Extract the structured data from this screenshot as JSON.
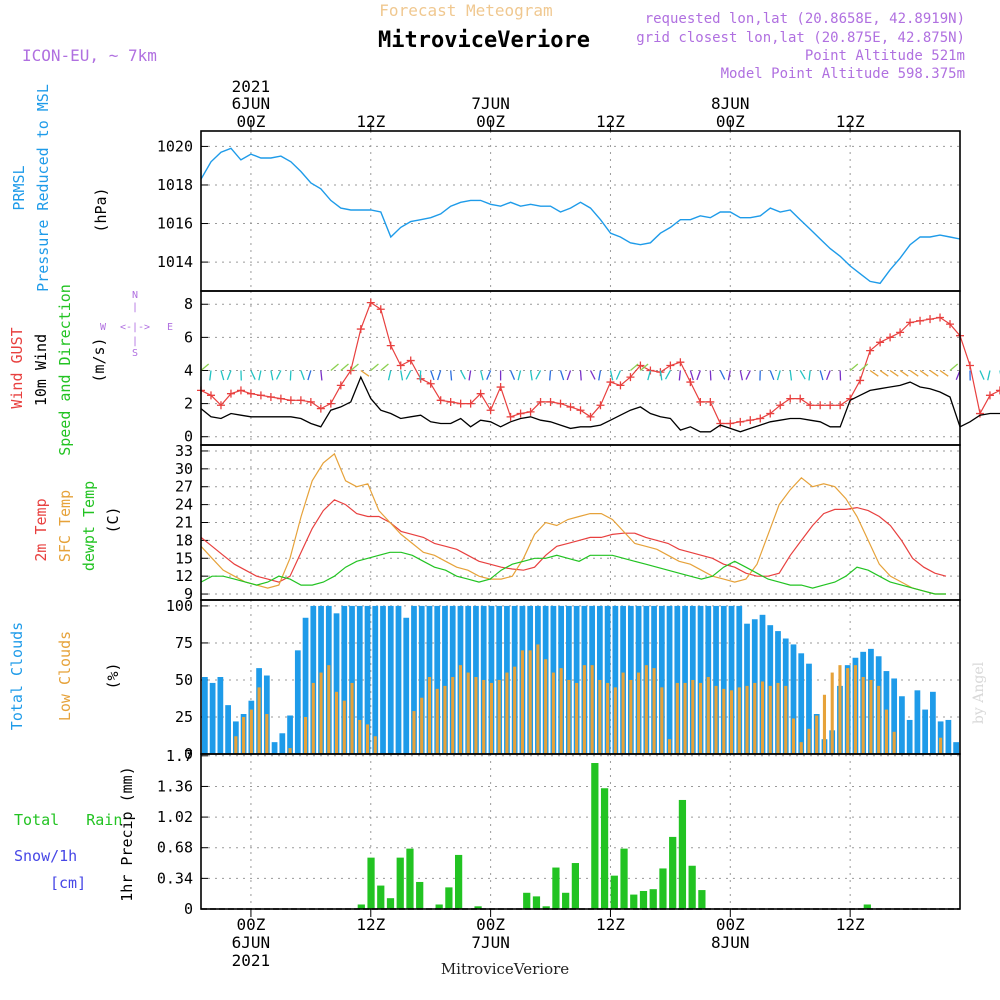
{
  "header": {
    "subtitle": "Forecast Meteogram",
    "location": "MitroviceVeriore",
    "model": "ICON-EU, ~ 7km",
    "requested": "requested lon,lat (20.8658E, 42.8919N)",
    "closest": "grid closest lon,lat (20.875E, 42.875N)",
    "point_alt": "Point Altitude 521m",
    "model_alt": "Model Point Altitude 598.375m",
    "footer": "MitroviceVeriore",
    "watermark": "by Angel"
  },
  "colors": {
    "blue": "#1e9be9",
    "red": "#e8403f",
    "orange": "#e6a23a",
    "green": "#22c322",
    "purple": "#a050d8",
    "grid": "#9a9a9a",
    "snow": "#4646e6"
  },
  "time_axis": {
    "top_ticks": [
      {
        "label": "00Z",
        "date": "6JUN",
        "year": "2021"
      },
      {
        "label": "12Z"
      },
      {
        "label": "00Z",
        "date": "7JUN"
      },
      {
        "label": "12Z"
      },
      {
        "label": "00Z",
        "date": "8JUN"
      },
      {
        "label": "12Z"
      }
    ],
    "bottom_ticks": [
      {
        "label": "00Z",
        "date": "6JUN",
        "year": "2021"
      },
      {
        "label": "12Z"
      },
      {
        "label": "00Z",
        "date": "7JUN"
      },
      {
        "label": "12Z"
      },
      {
        "label": "00Z",
        "date": "8JUN"
      },
      {
        "label": "12Z"
      }
    ],
    "start_hour": -5,
    "end_hour": 71
  },
  "compass": {
    "n": "N",
    "s": "S",
    "w": "W",
    "e": "E",
    "ew": "<-|->"
  },
  "chart_data": [
    {
      "type": "line",
      "title": "PRMSL Pressure Reduced to MSL",
      "ylabel": "(hPa)",
      "label_lines": [
        "PRMSL",
        "Pressure Reduced to MSL"
      ],
      "ylim": [
        1012.5,
        1020.8
      ],
      "yticks": [
        1014,
        1016,
        1018,
        1020
      ],
      "x_start": -5,
      "series": [
        {
          "name": "PRMSL",
          "values": [
            1018.3,
            1019.2,
            1019.7,
            1019.9,
            1019.3,
            1019.6,
            1019.4,
            1019.4,
            1019.5,
            1019.2,
            1018.7,
            1018.1,
            1017.8,
            1017.2,
            1016.8,
            1016.7,
            1016.7,
            1016.7,
            1016.6,
            1015.3,
            1015.8,
            1016.1,
            1016.2,
            1016.3,
            1016.5,
            1016.9,
            1017.1,
            1017.2,
            1017.2,
            1017.0,
            1016.9,
            1017.1,
            1016.9,
            1017.0,
            1016.9,
            1016.9,
            1016.6,
            1016.8,
            1017.1,
            1016.8,
            1016.2,
            1015.5,
            1015.3,
            1015.0,
            1014.9,
            1015.0,
            1015.5,
            1015.8,
            1016.2,
            1016.2,
            1016.4,
            1016.3,
            1016.6,
            1016.6,
            1016.3,
            1016.3,
            1016.4,
            1016.8,
            1016.6,
            1016.7,
            1016.2,
            1015.7,
            1015.2,
            1014.7,
            1014.3,
            1013.8,
            1013.4,
            1013.0,
            1012.9,
            1013.6,
            1014.2,
            1014.9,
            1015.3,
            1015.3,
            1015.4,
            1015.3,
            1015.2
          ]
        }
      ]
    },
    {
      "type": "line",
      "title": "Wind GUST / 10m Wind Speed and Direction",
      "ylabel": "(m/s)",
      "label_lines": [
        "Wind GUST",
        "10m Wind",
        "Speed and Direction"
      ],
      "ylim": [
        -0.5,
        8.8
      ],
      "yticks": [
        0,
        2,
        4,
        6,
        8
      ],
      "x_start": -5,
      "series": [
        {
          "name": "Wind GUST",
          "values": [
            2.8,
            2.5,
            1.9,
            2.6,
            2.8,
            2.6,
            2.5,
            2.4,
            2.3,
            2.2,
            2.2,
            2.1,
            1.7,
            2.0,
            3.1,
            4.0,
            6.5,
            8.1,
            7.7,
            5.5,
            4.3,
            4.6,
            3.5,
            3.2,
            2.2,
            2.1,
            2.0,
            2.0,
            2.6,
            1.6,
            3.0,
            1.2,
            1.4,
            1.5,
            2.1,
            2.1,
            2.0,
            1.8,
            1.6,
            1.2,
            1.9,
            3.3,
            3.1,
            3.6,
            4.3,
            4.0,
            3.9,
            4.3,
            4.5,
            3.3,
            2.1,
            2.1,
            0.8,
            0.8,
            0.9,
            1.0,
            1.1,
            1.4,
            1.9,
            2.3,
            2.3,
            1.9,
            1.9,
            1.9,
            1.9,
            2.3,
            3.4,
            5.2,
            5.7,
            6.0,
            6.3,
            6.9,
            7.0,
            7.1,
            7.2,
            6.8,
            6.1,
            4.3,
            1.4,
            2.5,
            2.8,
            2.9,
            3.0,
            3.1
          ]
        },
        {
          "name": "10m Wind",
          "values": [
            1.7,
            1.2,
            1.1,
            1.4,
            1.3,
            1.2,
            1.2,
            1.2,
            1.2,
            1.2,
            1.1,
            0.8,
            0.6,
            1.6,
            1.8,
            2.1,
            3.6,
            2.3,
            1.6,
            1.4,
            1.1,
            1.2,
            1.3,
            0.9,
            0.8,
            0.8,
            1.1,
            0.6,
            1.0,
            0.9,
            0.6,
            0.9,
            1.1,
            1.2,
            1.0,
            0.9,
            0.7,
            0.5,
            0.6,
            0.6,
            0.7,
            1.0,
            1.3,
            1.6,
            1.8,
            1.4,
            1.2,
            1.1,
            0.4,
            0.6,
            0.3,
            0.3,
            0.7,
            0.5,
            0.3,
            0.5,
            0.7,
            0.9,
            1.0,
            1.1,
            1.1,
            1.0,
            0.9,
            0.6,
            0.6,
            2.2,
            2.5,
            2.8,
            2.9,
            3.0,
            3.1,
            3.3,
            3.0,
            2.9,
            2.7,
            2.4,
            0.6,
            0.9,
            1.3,
            1.4,
            1.4,
            1.5
          ]
        }
      ],
      "wind_direction_arrows": "drawn along series at ~4 m/s, colored by speed class"
    },
    {
      "type": "line",
      "title": "Temperature",
      "ylabel": "(C)",
      "label_lines": [
        "2m Temp",
        "SFC Temp",
        "dewpt Temp"
      ],
      "ylim": [
        8,
        34
      ],
      "yticks": [
        9,
        12,
        15,
        18,
        21,
        24,
        27,
        30,
        33
      ],
      "x_start": -5,
      "series": [
        {
          "name": "2m Temp",
          "values": [
            18.5,
            17.0,
            15.5,
            14.0,
            13.0,
            12.0,
            11.5,
            11.0,
            12.0,
            16.0,
            20.0,
            23.0,
            24.8,
            24.0,
            22.5,
            22.0,
            22.0,
            21.0,
            19.5,
            19.0,
            18.5,
            17.5,
            17.0,
            16.5,
            15.5,
            14.5,
            14.0,
            13.5,
            13.2,
            13.0,
            13.5,
            15.5,
            17.0,
            17.5,
            18.0,
            18.5,
            18.5,
            19.0,
            19.2,
            19.2,
            18.5,
            18.0,
            17.5,
            16.5,
            16.0,
            15.5,
            15.0,
            14.0,
            13.5,
            12.5,
            12.0,
            12.0,
            12.5,
            15.5,
            18.0,
            20.5,
            22.5,
            23.2,
            23.2,
            23.5,
            23.0,
            22.0,
            20.5,
            18.0,
            15.0,
            13.5,
            12.5,
            12.0
          ]
        },
        {
          "name": "SFC Temp",
          "values": [
            17.0,
            15.0,
            13.0,
            12.0,
            11.0,
            10.5,
            10.0,
            10.5,
            15.0,
            22.0,
            28.0,
            31.0,
            32.5,
            28.0,
            27.0,
            27.5,
            23.0,
            21.0,
            19.0,
            17.5,
            16.0,
            15.5,
            14.5,
            13.5,
            13.0,
            12.0,
            11.5,
            11.5,
            12.0,
            15.0,
            19.0,
            21.0,
            20.5,
            21.5,
            22.0,
            22.5,
            22.5,
            21.5,
            19.5,
            17.5,
            17.0,
            16.5,
            15.5,
            14.5,
            14.0,
            13.0,
            12.0,
            11.5,
            11.0,
            11.5,
            14.0,
            19.0,
            24.0,
            26.5,
            28.5,
            27.0,
            27.5,
            27.0,
            25.0,
            22.0,
            18.0,
            14.0,
            12.0,
            11.0,
            10.0,
            9.5,
            9.0,
            9.0
          ]
        },
        {
          "name": "dewpt Temp",
          "values": [
            11.0,
            12.0,
            12.0,
            11.5,
            11.0,
            10.5,
            11.0,
            12.0,
            11.5,
            10.5,
            10.5,
            11.0,
            12.0,
            13.5,
            14.5,
            15.0,
            15.5,
            16.0,
            16.0,
            15.5,
            14.5,
            13.5,
            13.0,
            12.0,
            11.5,
            11.0,
            11.5,
            13.0,
            14.0,
            14.5,
            15.0,
            15.0,
            15.5,
            15.0,
            14.5,
            15.5,
            15.5,
            15.5,
            15.0,
            14.5,
            14.0,
            13.5,
            13.0,
            12.5,
            12.0,
            11.5,
            12.0,
            13.5,
            14.5,
            13.5,
            12.5,
            11.5,
            11.0,
            10.5,
            10.5,
            10.0,
            10.5,
            11.0,
            12.0,
            13.5,
            13.0,
            12.0,
            11.0,
            10.5,
            10.0,
            9.5,
            9.0,
            9.0
          ]
        }
      ]
    },
    {
      "type": "bar",
      "title": "Clouds",
      "ylabel": "(%)",
      "label_lines": [
        "Total Clouds",
        "Low Clouds"
      ],
      "ylim": [
        0,
        104
      ],
      "yticks": [
        0,
        25,
        50,
        75,
        100
      ],
      "x_start": -5,
      "series": [
        {
          "name": "Total Clouds",
          "values": [
            52,
            48,
            52,
            33,
            22,
            27,
            36,
            58,
            53,
            8,
            14,
            26,
            70,
            92,
            100,
            100,
            100,
            95,
            100,
            100,
            100,
            100,
            100,
            100,
            100,
            100,
            92,
            100,
            100,
            100,
            100,
            100,
            100,
            100,
            100,
            100,
            100,
            100,
            100,
            100,
            100,
            100,
            100,
            100,
            100,
            100,
            100,
            100,
            100,
            100,
            100,
            100,
            100,
            100,
            100,
            100,
            100,
            100,
            100,
            100,
            100,
            100,
            100,
            100,
            100,
            100,
            100,
            100,
            100,
            100,
            88,
            91,
            94,
            87,
            83,
            78,
            74,
            68,
            61,
            27,
            10,
            16,
            46,
            60,
            65,
            69,
            71,
            66,
            56,
            51,
            39,
            23,
            43,
            30,
            42,
            22,
            23,
            8
          ]
        },
        {
          "name": "Low Clouds",
          "values": [
            0,
            0,
            0,
            0,
            12,
            25,
            30,
            45,
            27,
            0,
            0,
            4,
            0,
            25,
            48,
            55,
            60,
            42,
            36,
            48,
            23,
            20,
            12,
            0,
            0,
            0,
            0,
            29,
            38,
            52,
            44,
            46,
            52,
            60,
            55,
            52,
            50,
            48,
            50,
            55,
            59,
            70,
            70,
            74,
            64,
            55,
            58,
            50,
            48,
            60,
            60,
            50,
            48,
            45,
            55,
            50,
            55,
            60,
            58,
            45,
            10,
            48,
            48,
            50,
            48,
            52,
            46,
            44,
            43,
            45,
            46,
            48,
            49,
            46,
            48,
            46,
            24,
            8,
            17,
            26,
            40,
            55,
            60,
            58,
            60,
            52,
            50,
            46,
            30,
            15,
            0,
            0,
            0,
            0,
            0,
            11,
            0,
            0
          ]
        }
      ]
    },
    {
      "type": "bar",
      "title": "1hr Precip",
      "ylabel": "1hr Precip (mm)",
      "label_lines": [
        "Total   Rain",
        "Snow/1h",
        "[cm]"
      ],
      "ylim": [
        0,
        1.72
      ],
      "yticks": [
        0,
        0.34,
        0.68,
        1.02,
        1.36,
        1.7
      ],
      "ytick_labels": [
        "0",
        "0.34",
        "0.68",
        "1.02",
        "1.36",
        "1.7"
      ],
      "x_start": -5,
      "series": [
        {
          "name": "Total Rain",
          "values": [
            0,
            0,
            0,
            0,
            0,
            0,
            0,
            0,
            0,
            0,
            0,
            0,
            0,
            0,
            0,
            0,
            0.05,
            0.57,
            0.26,
            0.12,
            0.57,
            0.67,
            0.3,
            0,
            0.05,
            0.24,
            0.6,
            0,
            0.03,
            0,
            0,
            0,
            0,
            0.18,
            0.14,
            0.03,
            0.46,
            0.18,
            0.51,
            0,
            1.62,
            1.34,
            0.37,
            0.67,
            0.16,
            0.2,
            0.22,
            0.45,
            0.8,
            1.21,
            0.48,
            0.21,
            0,
            0,
            0,
            0,
            0,
            0,
            0,
            0,
            0,
            0,
            0,
            0,
            0,
            0,
            0,
            0,
            0.05,
            0,
            0,
            0,
            0,
            0,
            0,
            0,
            0,
            0
          ]
        }
      ]
    }
  ]
}
